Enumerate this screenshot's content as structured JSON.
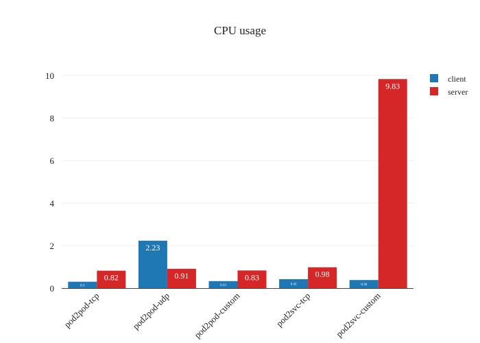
{
  "chart_data": {
    "type": "bar",
    "title": "CPU usage",
    "xlabel": "",
    "ylabel": "",
    "ylim": [
      0,
      10.5
    ],
    "yticks": [
      0,
      2,
      4,
      6,
      8,
      10
    ],
    "categories": [
      "pod2pod-tcp",
      "pod2pod-udp",
      "pod2pod-custom",
      "pod2svc-tcp",
      "pod2svc-custom"
    ],
    "series": [
      {
        "name": "client",
        "color": "#1f77b4",
        "values": [
          0.3,
          2.23,
          0.33,
          0.42,
          0.38
        ],
        "labels": [
          "0.3",
          "2.23",
          "0.33",
          "0.42",
          "0.38"
        ]
      },
      {
        "name": "server",
        "color": "#d62728",
        "values": [
          0.82,
          0.91,
          0.83,
          0.98,
          9.83
        ],
        "labels": [
          "0.82",
          "0.91",
          "0.83",
          "0.98",
          "9.83"
        ]
      }
    ],
    "grid": true,
    "legend_position": "top-right"
  }
}
